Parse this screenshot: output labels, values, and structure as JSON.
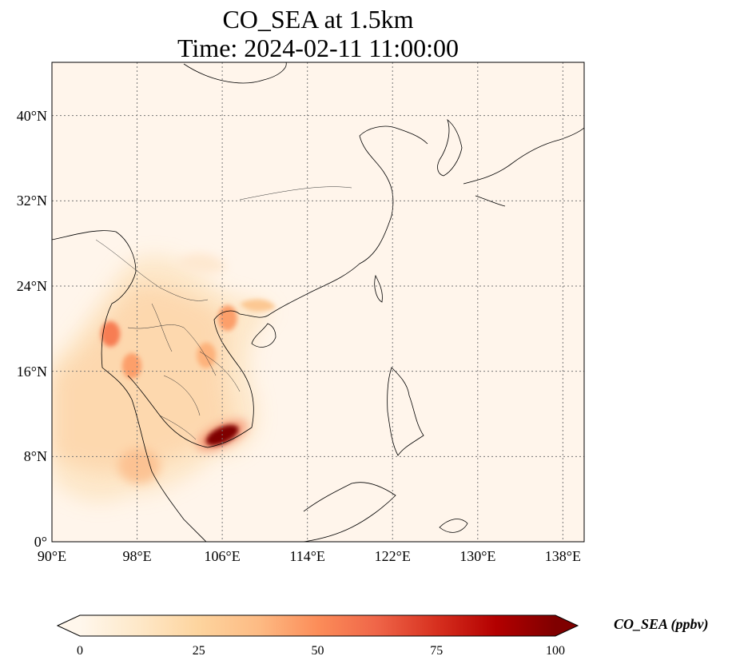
{
  "title": {
    "line1": "CO_SEA at 1.5km",
    "line2": "Time: 2024-02-11 11:00:00"
  },
  "map": {
    "projection": "PlateCarree",
    "lon_range": [
      90,
      140
    ],
    "lat_range": [
      0,
      45
    ],
    "gridlines": "dotted",
    "x_ticks": [
      "90°E",
      "98°E",
      "106°E",
      "114°E",
      "122°E",
      "130°E",
      "138°E"
    ],
    "x_tick_values": [
      90,
      98,
      106,
      114,
      122,
      130,
      138
    ],
    "y_ticks": [
      "0°",
      "8°N",
      "16°N",
      "24°N",
      "32°N",
      "40°N"
    ],
    "y_tick_values": [
      0,
      8,
      16,
      24,
      32,
      40
    ],
    "field": "CO_SEA",
    "hotspots": [
      {
        "region": "southern Vietnam / Mekong delta",
        "lon": 106.0,
        "lat": 10.0,
        "level": 100
      },
      {
        "region": "northern Myanmar / Thailand",
        "lon": 95.5,
        "lat": 19.5,
        "level": 55
      },
      {
        "region": "northern Thailand",
        "lon": 97.5,
        "lat": 16.5,
        "level": 45
      },
      {
        "region": "northern Vietnam",
        "lon": 106.5,
        "lat": 21.0,
        "level": 45
      },
      {
        "region": "central Laos",
        "lon": 104.5,
        "lat": 17.5,
        "level": 40
      }
    ]
  },
  "colorbar": {
    "label": "CO_SEA (ppbv)",
    "colormap": "OrRd",
    "range": [
      0,
      100
    ],
    "extend": "both",
    "ticks": [
      "0",
      "25",
      "50",
      "75",
      "100"
    ],
    "tick_values": [
      0,
      25,
      50,
      75,
      100
    ],
    "colors": [
      "#fff7ec",
      "#fee8c8",
      "#fdd49e",
      "#fdbb84",
      "#fc8d59",
      "#ef6548",
      "#d7301f",
      "#b30000",
      "#7f0000"
    ]
  }
}
